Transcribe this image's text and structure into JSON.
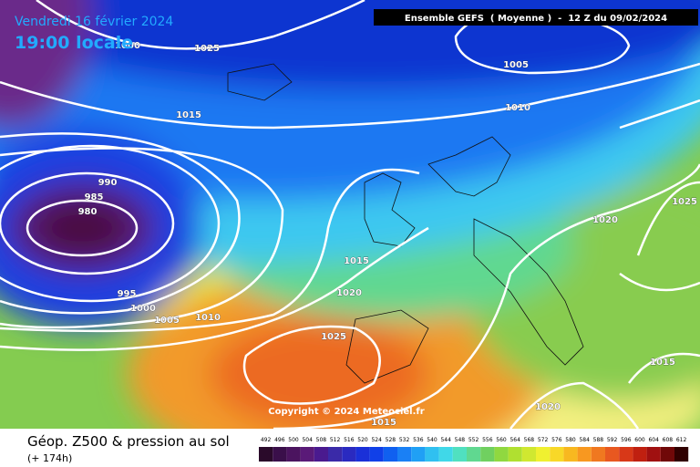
{
  "header": {
    "date": "Vendredi 16 février 2024",
    "time": "19:00 locale"
  },
  "run_info": "Ensemble GEFS  ( Moyenne )  -  12 Z du 09/02/2024",
  "isobar_labels": [
    "1000",
    "1025",
    "1005",
    "1015",
    "1010",
    "990",
    "985",
    "980",
    "995",
    "1000",
    "1005",
    "1010",
    "1015",
    "1020",
    "1025",
    "1020",
    "1025",
    "1015",
    "1020",
    "1015"
  ],
  "copyright": "Copyright © 2024 Meteociel.fr",
  "legend": {
    "title": "Géop. Z500 & pression au sol",
    "lead_time": "(+ 174h)",
    "scale": [
      {
        "label": "492",
        "color": "#2a0a2a"
      },
      {
        "label": "496",
        "color": "#3a0f4a"
      },
      {
        "label": "500",
        "color": "#4b145f"
      },
      {
        "label": "504",
        "color": "#5a1a78"
      },
      {
        "label": "508",
        "color": "#4a1a8f"
      },
      {
        "label": "512",
        "color": "#3a2aa8"
      },
      {
        "label": "516",
        "color": "#2a2ac0"
      },
      {
        "label": "520",
        "color": "#1a30d8"
      },
      {
        "label": "524",
        "color": "#1040e8"
      },
      {
        "label": "528",
        "color": "#1060f0"
      },
      {
        "label": "532",
        "color": "#1a80f5"
      },
      {
        "label": "536",
        "color": "#20a0f5"
      },
      {
        "label": "540",
        "color": "#30c0f0"
      },
      {
        "label": "544",
        "color": "#40d8e8"
      },
      {
        "label": "548",
        "color": "#50e0c0"
      },
      {
        "label": "552",
        "color": "#60d890"
      },
      {
        "label": "556",
        "color": "#70d060"
      },
      {
        "label": "560",
        "color": "#90d840"
      },
      {
        "label": "564",
        "color": "#b0e030"
      },
      {
        "label": "568",
        "color": "#d0e830"
      },
      {
        "label": "572",
        "color": "#f0f030"
      },
      {
        "label": "576",
        "color": "#f8d828"
      },
      {
        "label": "580",
        "color": "#f8b820"
      },
      {
        "label": "584",
        "color": "#f89820"
      },
      {
        "label": "588",
        "color": "#f07820"
      },
      {
        "label": "592",
        "color": "#e85820"
      },
      {
        "label": "596",
        "color": "#d83818"
      },
      {
        "label": "600",
        "color": "#c02010"
      },
      {
        "label": "604",
        "color": "#a01010"
      },
      {
        "label": "608",
        "color": "#700808"
      },
      {
        "label": "612",
        "color": "#300000"
      }
    ]
  }
}
